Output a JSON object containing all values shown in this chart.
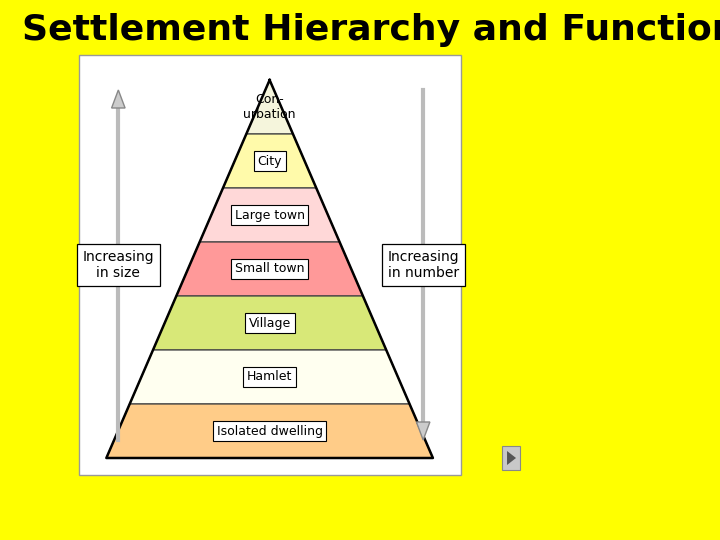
{
  "title": "Settlement Hierarchy and Function",
  "title_fontsize": 26,
  "title_color": "#000000",
  "background_color": "#FFFF00",
  "diagram_bg": "#FFFFFF",
  "layers": [
    {
      "label": "Con-\nurbation",
      "color": "#F5F5DC",
      "box": false
    },
    {
      "label": "City",
      "color": "#FFFAAA",
      "box": true
    },
    {
      "label": "Large town",
      "color": "#FFD8D8",
      "box": true
    },
    {
      "label": "Small town",
      "color": "#FF9999",
      "box": true
    },
    {
      "label": "Village",
      "color": "#D8E878",
      "box": true
    },
    {
      "label": "Hamlet",
      "color": "#FFFFF0",
      "box": true
    },
    {
      "label": "Isolated dwelling",
      "color": "#FFCC88",
      "box": true
    }
  ],
  "left_arrow_label": "Increasing\nin size",
  "right_arrow_label": "Increasing\nin number",
  "arrow_color": "#CCCCCC",
  "border_color": "#000000"
}
